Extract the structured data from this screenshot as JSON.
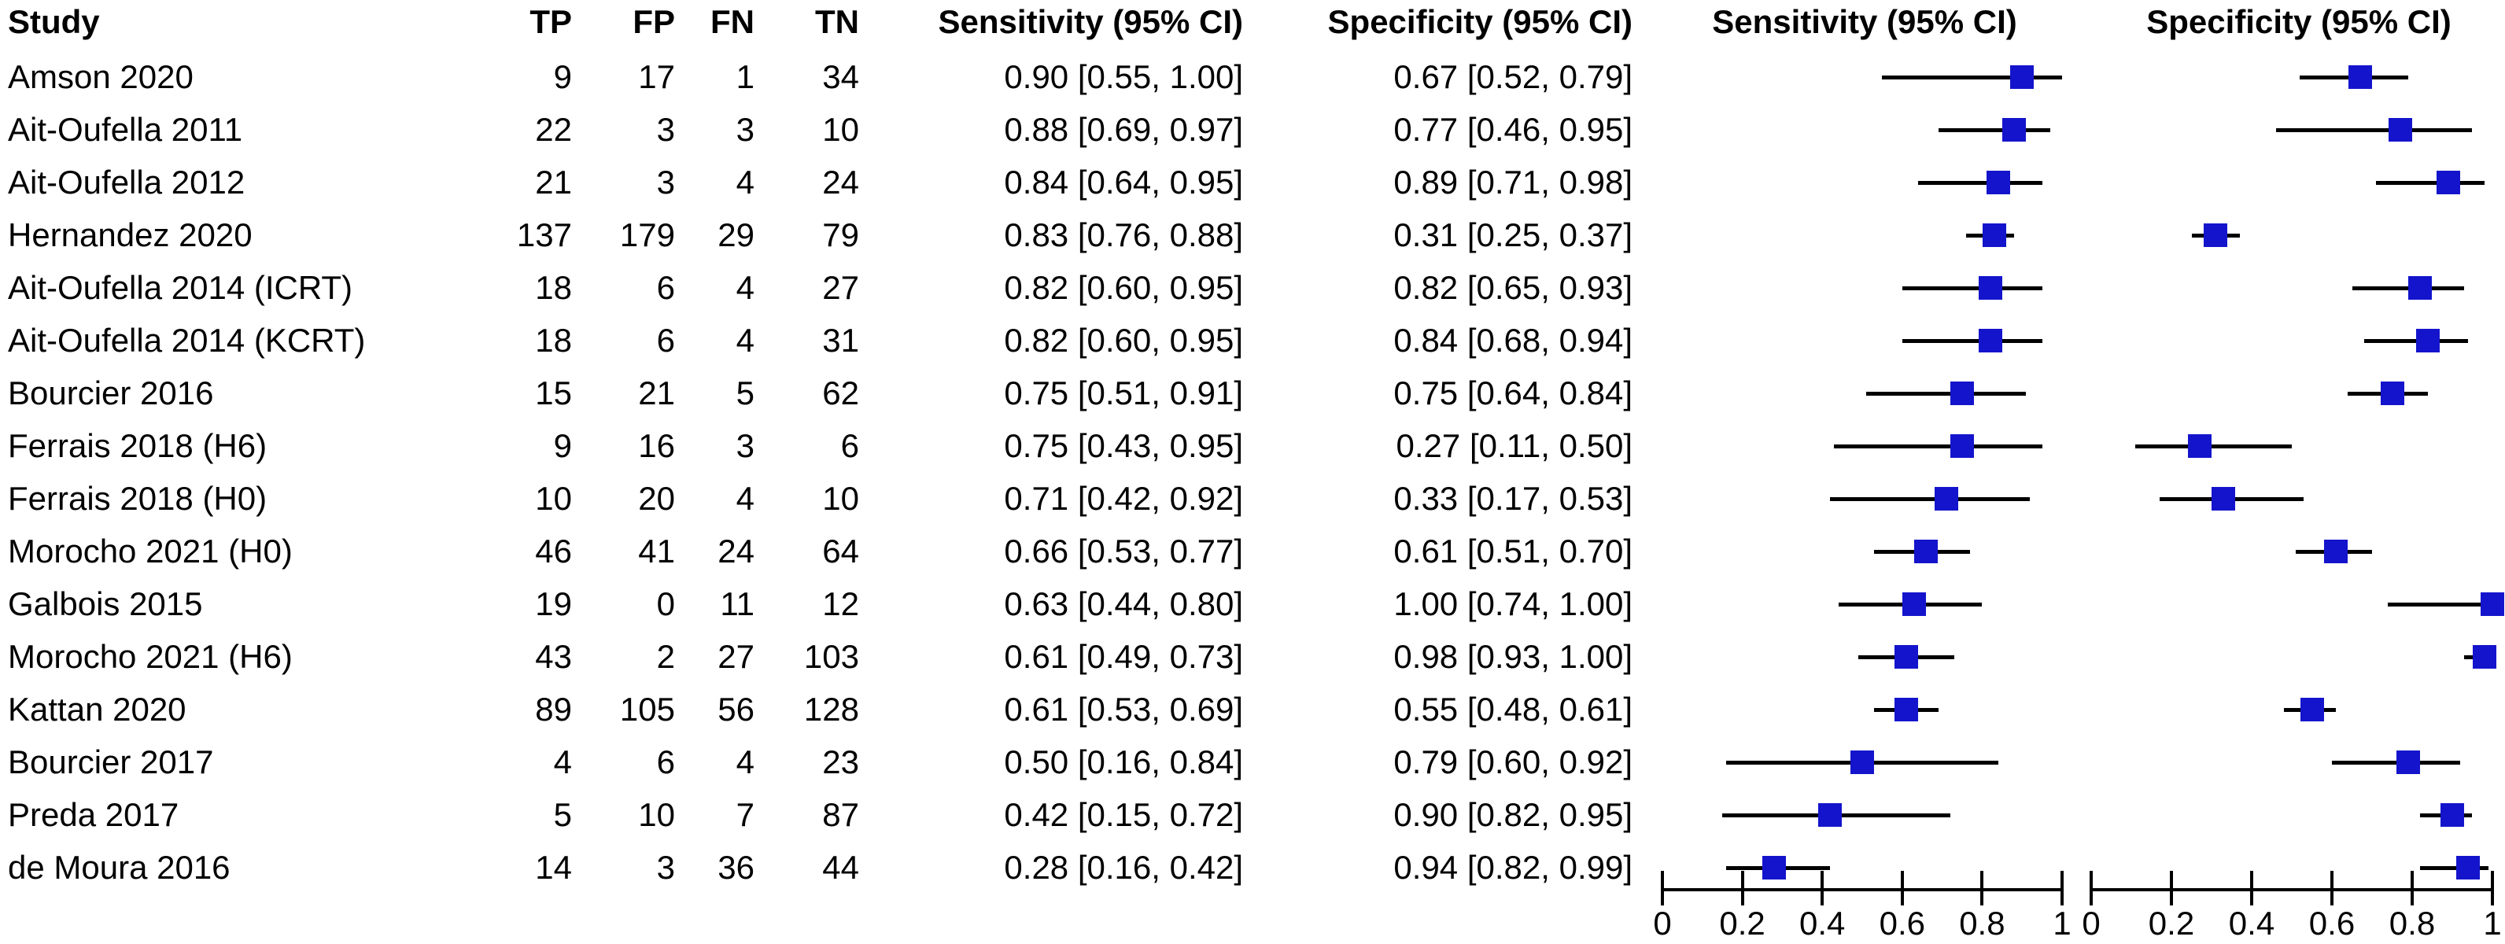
{
  "figure": {
    "background": "#ffffff",
    "marker_color": "#1414cc",
    "line_color": "#000000",
    "text_color": "#000000"
  },
  "table": {
    "headers": {
      "study": "Study",
      "tp": "TP",
      "fp": "FP",
      "fn": "FN",
      "tn": "TN",
      "sensitivity": "Sensitivity (95% CI)",
      "specificity": "Specificity (95% CI)"
    }
  },
  "plots": {
    "sensitivity_header": "Sensitivity (95% CI)",
    "specificity_header": "Specificity (95% CI)"
  },
  "axes": {
    "tick_labels": [
      "0",
      "0.2",
      "0.4",
      "0.6",
      "0.8",
      "1"
    ]
  },
  "studies": [
    {
      "name": "Amson 2020",
      "tp": "9",
      "fp": "17",
      "fn": "1",
      "tn": "34",
      "sens_ci": "0.90 [0.55, 1.00]",
      "spec_ci": "0.67 [0.52, 0.79]"
    },
    {
      "name": "Ait-Oufella 2011",
      "tp": "22",
      "fp": "3",
      "fn": "3",
      "tn": "10",
      "sens_ci": "0.88 [0.69, 0.97]",
      "spec_ci": "0.77 [0.46, 0.95]"
    },
    {
      "name": "Ait-Oufella 2012",
      "tp": "21",
      "fp": "3",
      "fn": "4",
      "tn": "24",
      "sens_ci": "0.84 [0.64, 0.95]",
      "spec_ci": "0.89 [0.71, 0.98]"
    },
    {
      "name": "Hernandez 2020",
      "tp": "137",
      "fp": "179",
      "fn": "29",
      "tn": "79",
      "sens_ci": "0.83 [0.76, 0.88]",
      "spec_ci": "0.31 [0.25, 0.37]"
    },
    {
      "name": "Ait-Oufella 2014 (ICRT)",
      "tp": "18",
      "fp": "6",
      "fn": "4",
      "tn": "27",
      "sens_ci": "0.82 [0.60, 0.95]",
      "spec_ci": "0.82 [0.65, 0.93]"
    },
    {
      "name": "Ait-Oufella 2014 (KCRT)",
      "tp": "18",
      "fp": "6",
      "fn": "4",
      "tn": "31",
      "sens_ci": "0.82 [0.60, 0.95]",
      "spec_ci": "0.84 [0.68, 0.94]"
    },
    {
      "name": "Bourcier 2016",
      "tp": "15",
      "fp": "21",
      "fn": "5",
      "tn": "62",
      "sens_ci": "0.75 [0.51, 0.91]",
      "spec_ci": "0.75 [0.64, 0.84]"
    },
    {
      "name": "Ferrais 2018 (H6)",
      "tp": "9",
      "fp": "16",
      "fn": "3",
      "tn": "6",
      "sens_ci": "0.75 [0.43, 0.95]",
      "spec_ci": "0.27 [0.11, 0.50]"
    },
    {
      "name": "Ferrais 2018 (H0)",
      "tp": "10",
      "fp": "20",
      "fn": "4",
      "tn": "10",
      "sens_ci": "0.71 [0.42, 0.92]",
      "spec_ci": "0.33 [0.17, 0.53]"
    },
    {
      "name": "Morocho 2021 (H0)",
      "tp": "46",
      "fp": "41",
      "fn": "24",
      "tn": "64",
      "sens_ci": "0.66 [0.53, 0.77]",
      "spec_ci": "0.61 [0.51, 0.70]"
    },
    {
      "name": "Galbois 2015",
      "tp": "19",
      "fp": "0",
      "fn": "11",
      "tn": "12",
      "sens_ci": "0.63 [0.44, 0.80]",
      "spec_ci": "1.00 [0.74, 1.00]"
    },
    {
      "name": "Morocho 2021 (H6)",
      "tp": "43",
      "fp": "2",
      "fn": "27",
      "tn": "103",
      "sens_ci": "0.61 [0.49, 0.73]",
      "spec_ci": "0.98 [0.93, 1.00]"
    },
    {
      "name": "Kattan 2020",
      "tp": "89",
      "fp": "105",
      "fn": "56",
      "tn": "128",
      "sens_ci": "0.61 [0.53, 0.69]",
      "spec_ci": "0.55 [0.48, 0.61]"
    },
    {
      "name": "Bourcier 2017",
      "tp": "4",
      "fp": "6",
      "fn": "4",
      "tn": "23",
      "sens_ci": "0.50 [0.16, 0.84]",
      "spec_ci": "0.79 [0.60, 0.92]"
    },
    {
      "name": "Preda 2017",
      "tp": "5",
      "fp": "10",
      "fn": "7",
      "tn": "87",
      "sens_ci": "0.42 [0.15, 0.72]",
      "spec_ci": "0.90 [0.82, 0.95]"
    },
    {
      "name": "de Moura 2016",
      "tp": "14",
      "fp": "3",
      "fn": "36",
      "tn": "44",
      "sens_ci": "0.28 [0.16, 0.42]",
      "spec_ci": "0.94 [0.82, 0.99]"
    }
  ],
  "chart_data": {
    "type": "scatter",
    "subtype": "paired-forest-plot",
    "title": "",
    "xlabel": "",
    "ylabel": "",
    "categories": [
      "Amson 2020",
      "Ait-Oufella 2011",
      "Ait-Oufella 2012",
      "Hernandez 2020",
      "Ait-Oufella 2014 (ICRT)",
      "Ait-Oufella 2014 (KCRT)",
      "Bourcier 2016",
      "Ferrais 2018 (H6)",
      "Ferrais 2018 (H0)",
      "Morocho 2021 (H0)",
      "Galbois 2015",
      "Morocho 2021 (H6)",
      "Kattan 2020",
      "Bourcier 2017",
      "Preda 2017",
      "de Moura 2016"
    ],
    "xlim": [
      0,
      1
    ],
    "xticks": [
      0,
      0.2,
      0.4,
      0.6,
      0.8,
      1
    ],
    "grid": false,
    "marker": "square",
    "marker_color": "#1414cc",
    "series": [
      {
        "name": "Sensitivity (95% CI)",
        "values": [
          0.9,
          0.88,
          0.84,
          0.83,
          0.82,
          0.82,
          0.75,
          0.75,
          0.71,
          0.66,
          0.63,
          0.61,
          0.61,
          0.5,
          0.42,
          0.28
        ],
        "ci_low": [
          0.55,
          0.69,
          0.64,
          0.76,
          0.6,
          0.6,
          0.51,
          0.43,
          0.42,
          0.53,
          0.44,
          0.49,
          0.53,
          0.16,
          0.15,
          0.16
        ],
        "ci_high": [
          1.0,
          0.97,
          0.95,
          0.88,
          0.95,
          0.95,
          0.91,
          0.95,
          0.92,
          0.77,
          0.8,
          0.73,
          0.69,
          0.84,
          0.72,
          0.42
        ]
      },
      {
        "name": "Specificity (95% CI)",
        "values": [
          0.67,
          0.77,
          0.89,
          0.31,
          0.82,
          0.84,
          0.75,
          0.27,
          0.33,
          0.61,
          1.0,
          0.98,
          0.55,
          0.79,
          0.9,
          0.94
        ],
        "ci_low": [
          0.52,
          0.46,
          0.71,
          0.25,
          0.65,
          0.68,
          0.64,
          0.11,
          0.17,
          0.51,
          0.74,
          0.93,
          0.48,
          0.6,
          0.82,
          0.82
        ],
        "ci_high": [
          0.79,
          0.95,
          0.98,
          0.37,
          0.93,
          0.94,
          0.84,
          0.5,
          0.53,
          0.7,
          1.0,
          1.0,
          0.61,
          0.92,
          0.95,
          0.99
        ]
      }
    ]
  }
}
